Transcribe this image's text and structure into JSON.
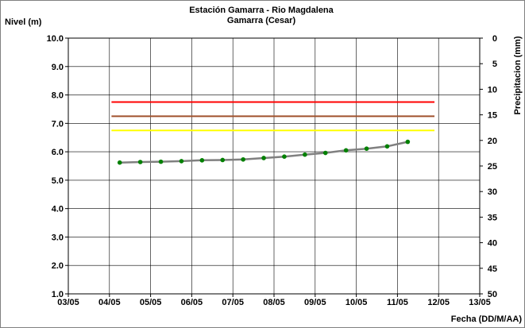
{
  "chart_data": {
    "type": "line",
    "title": "Estación Gamarra - Rio Magdalena",
    "subtitle": "Gamarra (Cesar)",
    "ylabel": "Nivel (m)",
    "y2label": "Precipitacion (mm)",
    "xlabel": "Fecha (DD/M/AA)",
    "ylim": [
      1.0,
      10.0
    ],
    "y_ticks": [
      "1.0",
      "2.0",
      "3.0",
      "4.0",
      "5.0",
      "6.0",
      "7.0",
      "8.0",
      "9.0",
      "10.0"
    ],
    "y2lim": [
      0,
      50
    ],
    "y2_ticks": [
      "0",
      "5",
      "10",
      "15",
      "20",
      "25",
      "30",
      "35",
      "40",
      "45",
      "50"
    ],
    "y2_reversed": true,
    "xlim": [
      0,
      10
    ],
    "x_ticks": [
      "03/05",
      "04/05",
      "05/05",
      "06/05",
      "07/05",
      "08/05",
      "09/05",
      "10/05",
      "11/05",
      "12/05",
      "13/05"
    ],
    "grid": true,
    "legend": "none",
    "thresholds": [
      {
        "value": 7.75,
        "x_start": 1.05,
        "x_end": 8.9,
        "color": "#ff0000"
      },
      {
        "value": 7.25,
        "x_start": 1.05,
        "x_end": 8.9,
        "color": "#a0522d"
      },
      {
        "value": 6.75,
        "x_start": 1.05,
        "x_end": 8.9,
        "color": "#ffff00"
      }
    ],
    "series": [
      {
        "line_color": "#808080",
        "marker_color": "#008000",
        "x": [
          1.25,
          1.75,
          2.25,
          2.75,
          3.25,
          3.75,
          4.25,
          4.75,
          5.25,
          5.75,
          6.25,
          6.75,
          7.25,
          7.75,
          8.25
        ],
        "y": [
          5.62,
          5.64,
          5.65,
          5.67,
          5.7,
          5.71,
          5.73,
          5.78,
          5.83,
          5.9,
          5.96,
          6.05,
          6.11,
          6.19,
          6.35
        ]
      }
    ]
  }
}
